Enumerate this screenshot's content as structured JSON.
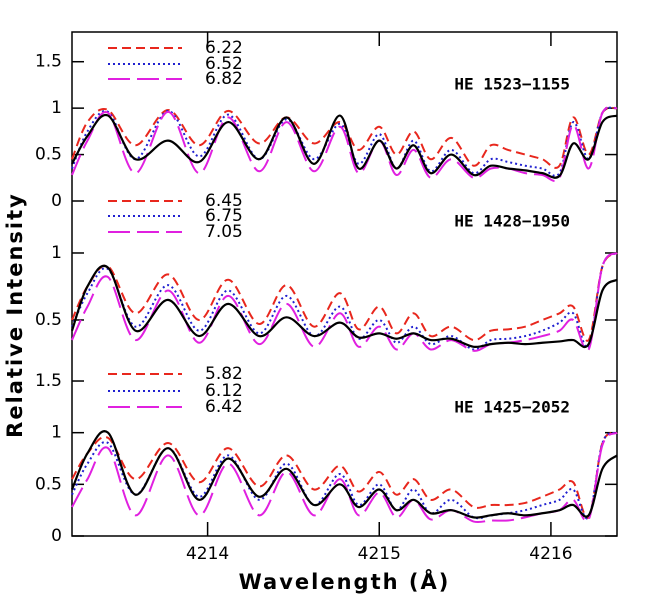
{
  "chart_data": [
    {
      "type": "line",
      "annotation": "HE 1523−1155",
      "x": [
        4213.21,
        4213.3,
        4213.42,
        4213.58,
        4213.77,
        4213.95,
        4214.12,
        4214.3,
        4214.46,
        4214.62,
        4214.77,
        4214.88,
        4215.0,
        4215.1,
        4215.2,
        4215.3,
        4215.42,
        4215.55,
        4215.65,
        4215.75,
        4215.85,
        4215.95,
        4216.05,
        4216.13,
        4216.22,
        4216.3,
        4216.385
      ],
      "xlim": [
        4213.21,
        4216.385
      ],
      "ylim": [
        0,
        1.82
      ],
      "yticks": [
        0,
        0.5,
        1,
        1.5
      ],
      "series": [
        {
          "name": "6.22",
          "color": "#e8271d",
          "dash": "short",
          "values": [
            0.45,
            0.85,
            0.98,
            0.6,
            0.98,
            0.6,
            0.97,
            0.62,
            0.9,
            0.62,
            0.85,
            0.55,
            0.8,
            0.5,
            0.75,
            0.45,
            0.68,
            0.38,
            0.6,
            0.55,
            0.5,
            0.45,
            0.38,
            0.9,
            0.5,
            0.95,
            1.0
          ]
        },
        {
          "name": "6.52",
          "color": "#2020d0",
          "dash": "dotted",
          "values": [
            0.35,
            0.75,
            0.96,
            0.45,
            0.97,
            0.48,
            0.93,
            0.45,
            0.88,
            0.45,
            0.83,
            0.4,
            0.72,
            0.35,
            0.65,
            0.32,
            0.55,
            0.3,
            0.45,
            0.42,
            0.38,
            0.35,
            0.3,
            0.85,
            0.45,
            0.95,
            1.0
          ]
        },
        {
          "name": "6.82",
          "color": "#e020e0",
          "dash": "long",
          "values": [
            0.28,
            0.65,
            0.95,
            0.3,
            0.96,
            0.3,
            0.9,
            0.32,
            0.85,
            0.32,
            0.8,
            0.3,
            0.65,
            0.28,
            0.55,
            0.25,
            0.45,
            0.25,
            0.35,
            0.35,
            0.3,
            0.28,
            0.25,
            0.82,
            0.35,
            0.95,
            1.0
          ]
        },
        {
          "color": "#000000",
          "dash": "solid",
          "values": [
            0.4,
            0.7,
            0.92,
            0.45,
            0.65,
            0.42,
            0.85,
            0.45,
            0.9,
            0.4,
            0.92,
            0.35,
            0.65,
            0.35,
            0.6,
            0.3,
            0.5,
            0.28,
            0.38,
            0.35,
            0.33,
            0.3,
            0.27,
            0.62,
            0.45,
            0.85,
            0.92
          ]
        }
      ]
    },
    {
      "type": "line",
      "annotation": "HE 1428−1950",
      "ylabel": "Relative Intensity",
      "x": [
        4213.21,
        4213.3,
        4213.42,
        4213.58,
        4213.77,
        4213.95,
        4214.12,
        4214.3,
        4214.46,
        4214.62,
        4214.77,
        4214.88,
        4215.0,
        4215.1,
        4215.2,
        4215.3,
        4215.42,
        4215.55,
        4215.65,
        4215.75,
        4215.85,
        4215.95,
        4216.05,
        4216.13,
        4216.22,
        4216.3,
        4216.385
      ],
      "xlim": [
        4213.21,
        4216.385
      ],
      "ylim": [
        0.164,
        1.388
      ],
      "yticks": [
        0.5,
        1
      ],
      "series": [
        {
          "name": "6.45",
          "color": "#e8271d",
          "dash": "short",
          "values": [
            0.5,
            0.75,
            0.9,
            0.55,
            0.84,
            0.5,
            0.8,
            0.47,
            0.76,
            0.45,
            0.7,
            0.43,
            0.6,
            0.4,
            0.55,
            0.38,
            0.45,
            0.35,
            0.42,
            0.43,
            0.45,
            0.5,
            0.55,
            0.6,
            0.35,
            0.9,
            1.0
          ]
        },
        {
          "name": "6.75",
          "color": "#2020d0",
          "dash": "dotted",
          "values": [
            0.45,
            0.7,
            0.88,
            0.45,
            0.76,
            0.42,
            0.72,
            0.4,
            0.68,
            0.38,
            0.6,
            0.36,
            0.5,
            0.33,
            0.45,
            0.32,
            0.38,
            0.28,
            0.35,
            0.36,
            0.38,
            0.42,
            0.48,
            0.55,
            0.3,
            0.9,
            1.0
          ]
        },
        {
          "name": "7.05",
          "color": "#e020e0",
          "dash": "long",
          "values": [
            0.35,
            0.6,
            0.82,
            0.35,
            0.72,
            0.33,
            0.68,
            0.32,
            0.62,
            0.3,
            0.55,
            0.3,
            0.45,
            0.28,
            0.4,
            0.28,
            0.35,
            0.27,
            0.32,
            0.33,
            0.35,
            0.38,
            0.42,
            0.5,
            0.28,
            0.9,
            1.0
          ]
        },
        {
          "color": "#000000",
          "dash": "solid",
          "values": [
            0.42,
            0.75,
            0.89,
            0.42,
            0.65,
            0.38,
            0.62,
            0.38,
            0.52,
            0.38,
            0.48,
            0.37,
            0.4,
            0.36,
            0.4,
            0.35,
            0.36,
            0.3,
            0.32,
            0.33,
            0.32,
            0.33,
            0.34,
            0.35,
            0.32,
            0.72,
            0.8
          ]
        }
      ]
    },
    {
      "type": "line",
      "annotation": "HE 1425−2052",
      "xlabel": "Wavelength (Å)",
      "x": [
        4213.21,
        4213.3,
        4213.42,
        4213.58,
        4213.77,
        4213.95,
        4214.12,
        4214.3,
        4214.46,
        4214.62,
        4214.77,
        4214.88,
        4215.0,
        4215.1,
        4215.2,
        4215.3,
        4215.42,
        4215.55,
        4215.65,
        4215.75,
        4215.85,
        4215.95,
        4216.05,
        4216.13,
        4216.22,
        4216.3,
        4216.385
      ],
      "xlim": [
        4213.21,
        4216.385
      ],
      "xticks": [
        4214,
        4215,
        4216
      ],
      "ylim": [
        0,
        1.655
      ],
      "yticks": [
        0,
        0.5,
        1,
        1.5
      ],
      "series": [
        {
          "name": "5.82",
          "color": "#e8271d",
          "dash": "short",
          "values": [
            0.55,
            0.8,
            0.95,
            0.55,
            0.9,
            0.52,
            0.85,
            0.48,
            0.78,
            0.45,
            0.68,
            0.43,
            0.62,
            0.4,
            0.55,
            0.35,
            0.45,
            0.28,
            0.3,
            0.3,
            0.32,
            0.38,
            0.45,
            0.52,
            0.18,
            0.9,
            1.0
          ]
        },
        {
          "name": "6.12",
          "color": "#2020d0",
          "dash": "dotted",
          "values": [
            0.4,
            0.7,
            0.9,
            0.4,
            0.85,
            0.38,
            0.78,
            0.35,
            0.7,
            0.3,
            0.6,
            0.3,
            0.5,
            0.25,
            0.45,
            0.22,
            0.35,
            0.18,
            0.2,
            0.22,
            0.25,
            0.3,
            0.35,
            0.45,
            0.18,
            0.9,
            1.0
          ]
        },
        {
          "name": "6.42",
          "color": "#e020e0",
          "dash": "long",
          "values": [
            0.28,
            0.55,
            0.85,
            0.2,
            0.78,
            0.2,
            0.7,
            0.2,
            0.62,
            0.2,
            0.55,
            0.2,
            0.42,
            0.18,
            0.35,
            0.16,
            0.25,
            0.14,
            0.15,
            0.15,
            0.18,
            0.22,
            0.25,
            0.35,
            0.16,
            0.88,
            1.0
          ]
        },
        {
          "color": "#000000",
          "dash": "solid",
          "values": [
            0.45,
            0.8,
            1.0,
            0.4,
            0.85,
            0.35,
            0.75,
            0.38,
            0.65,
            0.3,
            0.5,
            0.28,
            0.45,
            0.25,
            0.35,
            0.22,
            0.25,
            0.18,
            0.2,
            0.22,
            0.2,
            0.22,
            0.25,
            0.3,
            0.2,
            0.65,
            0.78
          ]
        }
      ]
    }
  ]
}
